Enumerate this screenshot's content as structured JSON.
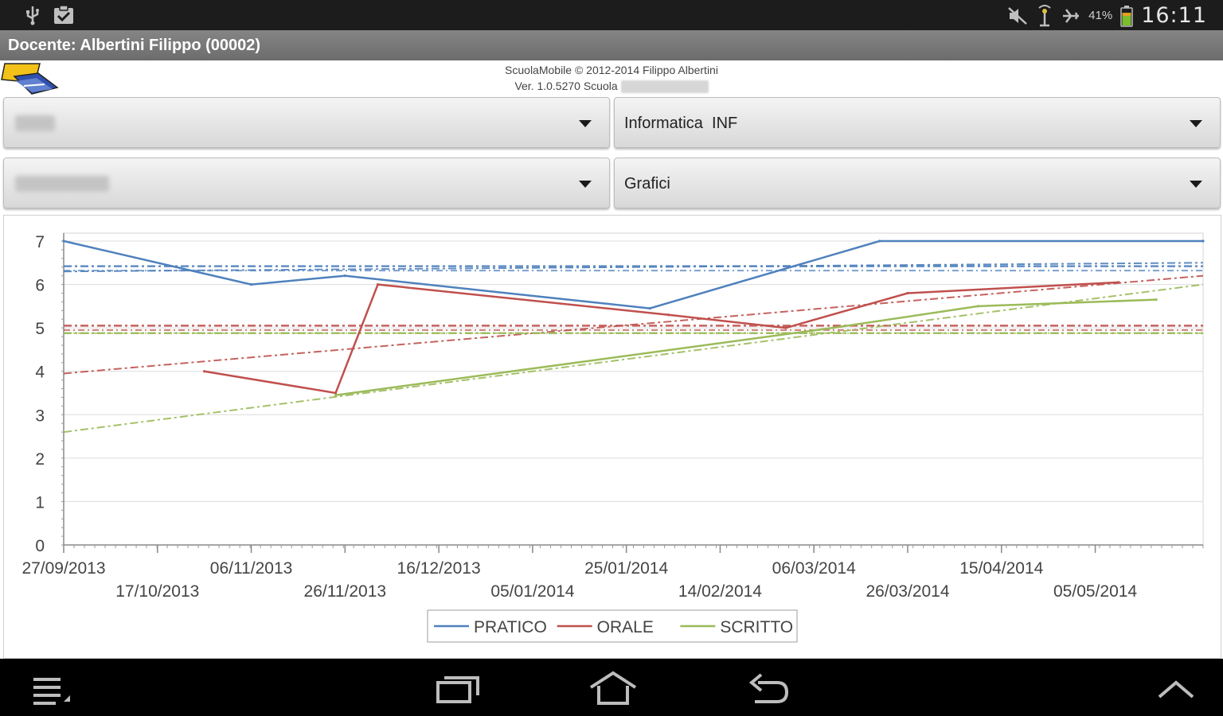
{
  "status_bar": {
    "clock": "16:11",
    "battery_percent": "41%",
    "icons": [
      "usb-icon",
      "clipboard-check-icon",
      "mute-icon",
      "signal-icon",
      "airplane-icon",
      "battery-icon"
    ]
  },
  "title_bar": {
    "title": "Docente: Albertini Filippo (00002)"
  },
  "header": {
    "copyright": "ScuolaMobile © 2012-2014 Filippo Albertini",
    "version": "Ver. 1.0.5270 Scuola"
  },
  "spinners": {
    "class": {
      "value": ""
    },
    "subject": {
      "value": "Informatica  INF"
    },
    "student": {
      "value": ""
    },
    "view": {
      "value": "Grafici"
    }
  },
  "chart_data": {
    "type": "line",
    "title": "",
    "xlabel": "",
    "ylabel": "",
    "ylim": [
      0,
      7
    ],
    "yticks": [
      "0",
      "1",
      "2",
      "3",
      "4",
      "5",
      "6",
      "7"
    ],
    "xticks": [
      "27/09/2013",
      "17/10/2013",
      "06/11/2013",
      "26/11/2013",
      "16/12/2013",
      "05/01/2014",
      "25/01/2014",
      "14/02/2014",
      "06/03/2014",
      "26/03/2014",
      "15/04/2014",
      "05/05/2014"
    ],
    "xlim": [
      "2013-09-27",
      "2014-05-28"
    ],
    "grid": "horizontal",
    "legend_position": "bottom-center",
    "series": [
      {
        "name": "PRATICO",
        "color": "#4f81bd",
        "points": [
          {
            "x": "2013-09-27",
            "y": 7.0
          },
          {
            "x": "2013-11-06",
            "y": 6.0
          },
          {
            "x": "2013-11-26",
            "y": 6.2
          },
          {
            "x": "2014-01-30",
            "y": 5.45
          },
          {
            "x": "2014-03-20",
            "y": 7.0
          },
          {
            "x": "2014-05-28",
            "y": 7.0
          }
        ],
        "mean": 6.42,
        "mean_alt": 6.32,
        "trend": [
          6.3,
          6.5
        ]
      },
      {
        "name": "ORALE",
        "color": "#c0504d",
        "points": [
          {
            "x": "2013-10-27",
            "y": 4.0
          },
          {
            "x": "2013-11-24",
            "y": 3.5
          },
          {
            "x": "2013-12-03",
            "y": 6.0
          },
          {
            "x": "2014-02-03",
            "y": 5.3
          },
          {
            "x": "2014-02-28",
            "y": 5.0
          },
          {
            "x": "2014-03-26",
            "y": 5.8
          },
          {
            "x": "2014-05-10",
            "y": 6.05
          }
        ],
        "mean": 5.05,
        "mean_alt": 4.95,
        "trend": [
          3.95,
          6.2
        ]
      },
      {
        "name": "SCRITTO",
        "color": "#9bbb59",
        "points": [
          {
            "x": "2013-11-24",
            "y": 3.45
          },
          {
            "x": "2014-03-10",
            "y": 5.0
          },
          {
            "x": "2014-04-10",
            "y": 5.5
          },
          {
            "x": "2014-05-18",
            "y": 5.65
          }
        ],
        "mean": 4.88,
        "mean_alt": 4.88,
        "trend": [
          2.6,
          6.0
        ]
      }
    ]
  },
  "nav_bar": {
    "icons": [
      "menu-icon",
      "recent-apps-icon",
      "home-icon",
      "back-icon",
      "expand-up-icon"
    ]
  }
}
